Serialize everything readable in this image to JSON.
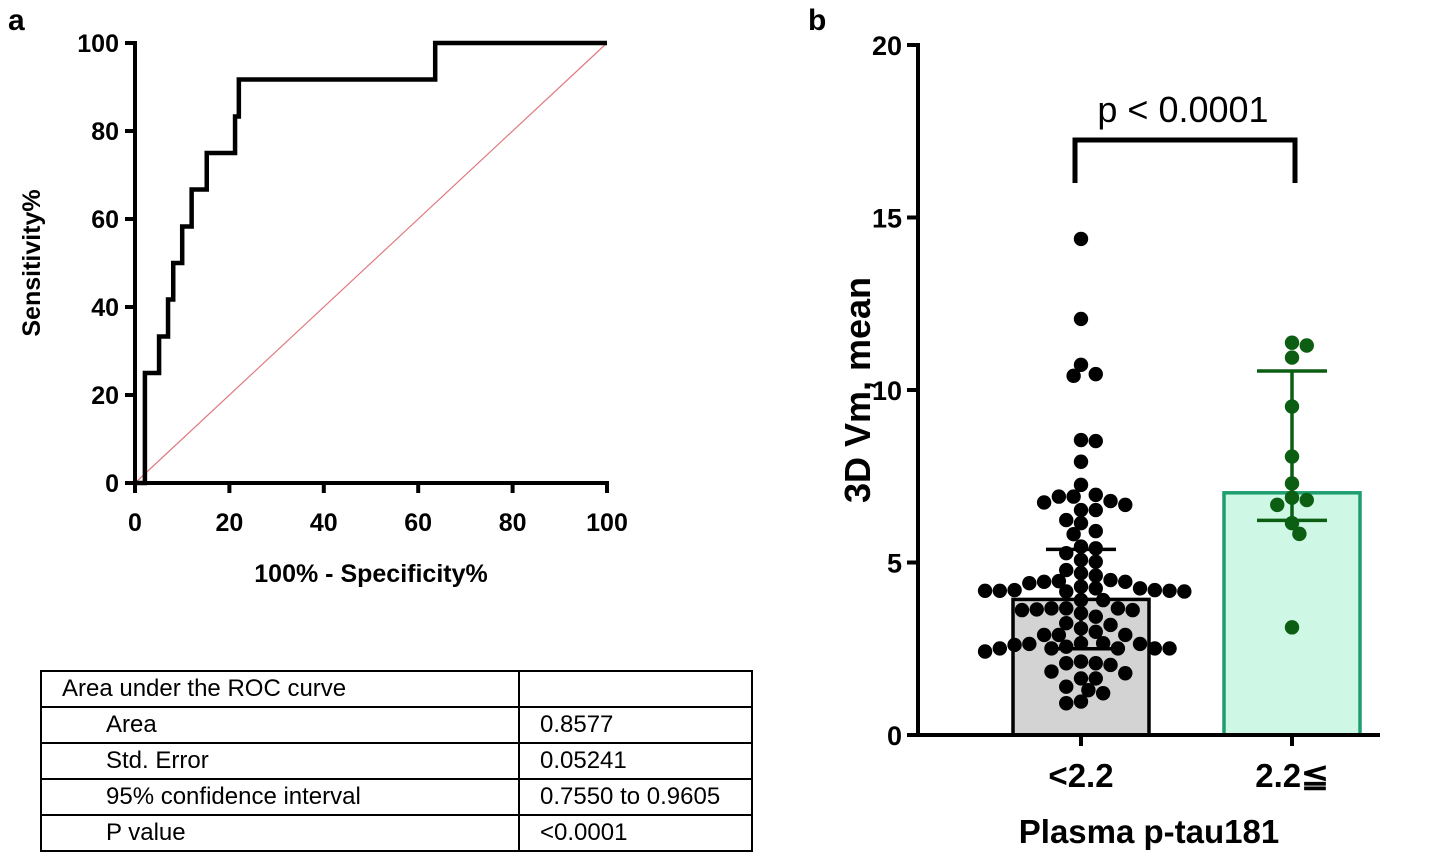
{
  "colors": {
    "axis": "#000000",
    "roc": "#000000",
    "reference_line": "#e07a80",
    "group1_fill": "#d3d3d3",
    "group1_edge": "#000000",
    "group1_points": "#000000",
    "group2_fill": "#cef7e6",
    "group2_edge": "#1e9e6e",
    "group2_points": "#0b5e12"
  },
  "chart_data": [
    {
      "panel": "a",
      "type": "line",
      "title": "",
      "xlabel": "100% - Specificity%",
      "ylabel": "Sensitivity%",
      "xlim": [
        0,
        100
      ],
      "ylim": [
        0,
        100
      ],
      "xticks": [
        0,
        20,
        40,
        60,
        80,
        100
      ],
      "yticks": [
        0,
        20,
        40,
        60,
        80,
        100
      ],
      "series": [
        {
          "name": "ROC",
          "x": [
            0,
            2.1,
            2.1,
            5.1,
            5.1,
            7.0,
            7.0,
            8.1,
            8.1,
            10.0,
            10.0,
            12.0,
            12.0,
            15.2,
            15.2,
            21.2,
            21.2,
            22.0,
            22.0,
            63.6,
            63.6,
            100
          ],
          "y": [
            0,
            0,
            25,
            25,
            33.3,
            33.3,
            41.7,
            41.7,
            50,
            50,
            58.3,
            58.3,
            66.7,
            66.7,
            75,
            75,
            83.3,
            83.3,
            91.7,
            91.7,
            100,
            100
          ]
        },
        {
          "name": "Reference",
          "x": [
            0,
            100
          ],
          "y": [
            0,
            100
          ]
        }
      ]
    },
    {
      "panel": "b",
      "type": "bar",
      "xlabel": "Plasma p-tau181",
      "ylabel": "3D Vm, mean",
      "ylim": [
        0,
        20
      ],
      "yticks": [
        0,
        5,
        10,
        15,
        20
      ],
      "categories": [
        "<2.2",
        "2.2≦"
      ],
      "means": [
        3.93,
        7.02
      ],
      "error_low": [
        2.5,
        6.22
      ],
      "error_high": [
        5.38,
        10.55
      ],
      "annotation": "p < 0.0001",
      "points": [
        [
          14.38,
          12.06,
          10.73,
          10.46,
          10.41,
          8.55,
          8.52,
          7.92,
          7.25,
          6.74,
          6.91,
          6.96,
          6.91,
          6.78,
          6.52,
          6.67,
          6.52,
          6.23,
          6.14,
          5.91,
          5.82,
          5.46,
          5.41,
          5.27,
          5.07,
          5.02,
          4.78,
          4.69,
          4.62,
          4.49,
          4.44,
          4.46,
          4.44,
          4.4,
          4.2,
          4.18,
          4.16,
          4.18,
          4.16,
          4.25,
          4.3,
          4.2,
          4.18,
          4.25,
          3.91,
          3.91,
          3.62,
          3.64,
          3.62,
          3.67,
          3.67,
          3.67,
          3.53,
          3.43,
          3.19,
          3.24,
          3.09,
          2.99,
          2.9,
          2.9,
          2.9,
          2.66,
          2.66,
          2.51,
          2.42,
          2.56,
          2.51,
          2.51,
          2.51,
          2.61,
          2.64,
          2.51,
          2.64,
          2.08,
          2.03,
          2.08,
          2.13,
          1.84,
          1.79,
          1.64,
          1.64,
          1.4,
          1.3,
          1.21,
          0.97,
          0.92
        ],
        [
          11.29,
          11.37,
          10.94,
          9.52,
          8.07,
          7.29,
          6.88,
          6.67,
          6.81,
          6.14,
          5.83,
          3.12
        ]
      ]
    }
  ],
  "panel_labels": {
    "a": "a",
    "b": "b"
  },
  "table": {
    "header": "Area under the ROC curve",
    "rows": [
      {
        "label": "Area",
        "value": "0.8577"
      },
      {
        "label": "Std. Error",
        "value": "0.05241"
      },
      {
        "label": "95% confidence interval",
        "value": "0.7550 to 0.9605"
      },
      {
        "label": "P value",
        "value": "<0.0001"
      }
    ]
  }
}
